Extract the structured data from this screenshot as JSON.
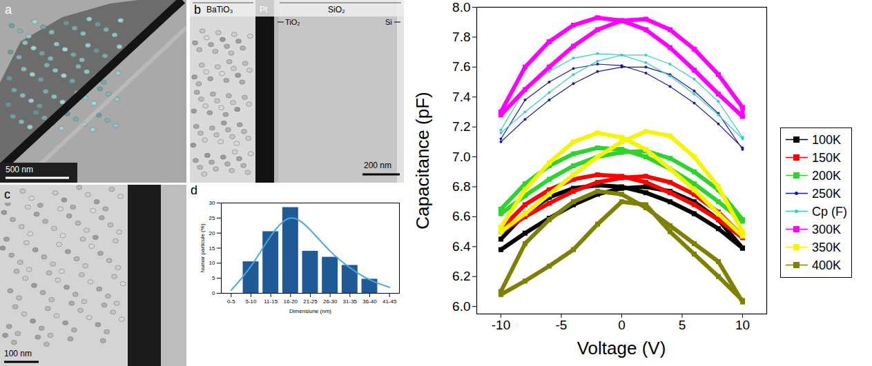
{
  "images": [
    {
      "label": "a",
      "scale_bar": "500 nm"
    },
    {
      "label": "b",
      "scale_bar": "200 nm",
      "layers": [
        "BaTiO₃",
        "Pt",
        "TiO₂",
        "SiO₂",
        "Si"
      ]
    },
    {
      "label": "c",
      "scale_bar": "100 nm"
    }
  ],
  "chart_data": [
    {
      "type": "bar",
      "label": "d",
      "x_label": "Dimensiune (nm)",
      "y_label": "Numar particule (%)",
      "categories": [
        "0-5",
        "5-10",
        "11-15",
        "16-20",
        "21-25",
        "26-30",
        "31-35",
        "36-40",
        "41-45"
      ],
      "ylim": [
        0,
        30
      ],
      "yticks": [
        0,
        5,
        10,
        15,
        20,
        25,
        30
      ],
      "series": [
        {
          "type": "bar",
          "color": "#1f5a96",
          "values": [
            0,
            10.5,
            20.5,
            28.5,
            14,
            12,
            9.3,
            4.7,
            0
          ]
        },
        {
          "type": "line",
          "color": "#4aa8e0",
          "values": [
            1,
            9,
            19,
            25,
            21,
            14,
            8.5,
            4.5,
            2
          ]
        }
      ]
    },
    {
      "type": "line",
      "x_label": "Voltage (V)",
      "y_label": "Capacitance (pF)",
      "xlim": [
        -12,
        12
      ],
      "xticks": [
        -10,
        -5,
        0,
        5,
        10
      ],
      "ylim": [
        5.95,
        8.0
      ],
      "yticks": [
        {
          "value": 6,
          "label": "6.0"
        },
        6.2,
        6.4,
        6.6,
        6.8,
        {
          "value": 7,
          "label": "7.0"
        },
        7.2,
        7.4,
        7.6,
        7.8,
        {
          "value": 8,
          "label": "8.0"
        }
      ],
      "legend": "right",
      "x": [
        -10,
        -8,
        -6,
        -4,
        -2,
        0,
        2,
        4,
        6,
        8,
        10,
        10,
        8,
        6,
        4,
        2,
        0,
        -2,
        -4,
        -6,
        -8,
        -10
      ],
      "series": [
        {
          "name": "100K",
          "color": "#000000",
          "marker": "square",
          "values": [
            6.38,
            6.49,
            6.59,
            6.68,
            6.75,
            6.79,
            6.8,
            6.77,
            6.7,
            6.58,
            6.39,
            6.39,
            6.52,
            6.62,
            6.7,
            6.76,
            6.8,
            6.81,
            6.79,
            6.73,
            6.62,
            6.45
          ]
        },
        {
          "name": "150K",
          "color": "#ff0000",
          "marker": "square",
          "values": [
            6.5,
            6.6,
            6.69,
            6.77,
            6.83,
            6.86,
            6.87,
            6.83,
            6.75,
            6.63,
            6.47,
            6.46,
            6.58,
            6.68,
            6.76,
            6.83,
            6.87,
            6.88,
            6.85,
            6.78,
            6.68,
            6.52
          ]
        },
        {
          "name": "200K",
          "color": "#2fd32f",
          "marker": "square",
          "values": [
            6.62,
            6.74,
            6.85,
            6.94,
            7.0,
            7.03,
            7.04,
            6.99,
            6.9,
            6.78,
            6.58,
            6.57,
            6.7,
            6.82,
            6.92,
            7.0,
            7.05,
            7.06,
            7.02,
            6.94,
            6.82,
            6.65
          ]
        },
        {
          "name": "250K",
          "color": "#1a1a99",
          "marker": "circle",
          "values": [
            7.1,
            7.25,
            7.38,
            7.49,
            7.57,
            7.6,
            7.6,
            7.55,
            7.44,
            7.29,
            7.05,
            7.06,
            7.22,
            7.36,
            7.47,
            7.56,
            7.61,
            7.62,
            7.59,
            7.5,
            7.38,
            7.12
          ]
        },
        {
          "name": "Cp (F)",
          "color": "#33cccc",
          "marker": "circle",
          "values": [
            7.16,
            7.3,
            7.43,
            7.55,
            7.64,
            7.68,
            7.68,
            7.62,
            7.52,
            7.37,
            7.13,
            7.12,
            7.28,
            7.42,
            7.54,
            7.63,
            7.68,
            7.69,
            7.66,
            7.57,
            7.45,
            7.18
          ]
        },
        {
          "name": "300K",
          "color": "#ff00ff",
          "marker": "square",
          "values": [
            7.28,
            7.45,
            7.6,
            7.74,
            7.85,
            7.91,
            7.92,
            7.85,
            7.72,
            7.55,
            7.33,
            7.27,
            7.42,
            7.58,
            7.73,
            7.85,
            7.91,
            7.93,
            7.88,
            7.77,
            7.6,
            7.3
          ]
        },
        {
          "name": "350K",
          "color": "#f5f500",
          "marker": "square",
          "values": [
            6.5,
            6.62,
            6.75,
            6.88,
            7.0,
            7.1,
            7.17,
            7.14,
            7.0,
            6.8,
            6.5,
            6.47,
            6.62,
            6.78,
            6.92,
            7.05,
            7.13,
            7.16,
            7.1,
            6.96,
            6.78,
            6.53
          ]
        },
        {
          "name": "400K",
          "color": "#808000",
          "marker": "square",
          "values": [
            6.08,
            6.17,
            6.27,
            6.38,
            6.55,
            6.7,
            6.68,
            6.5,
            6.35,
            6.2,
            6.04,
            6.03,
            6.3,
            6.42,
            6.54,
            6.66,
            6.75,
            6.77,
            6.7,
            6.58,
            6.42,
            6.1
          ]
        }
      ]
    }
  ]
}
